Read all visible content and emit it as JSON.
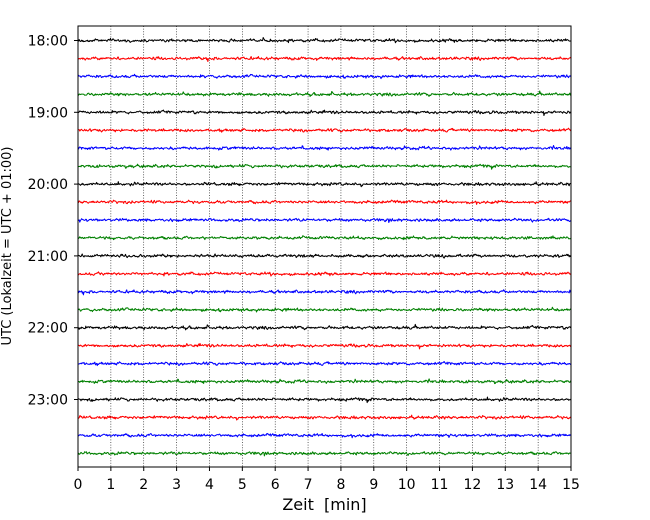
{
  "chart_data": {
    "type": "line",
    "title": "",
    "xlabel": "Zeit  [min]",
    "ylabel": "UTC (Lokalzeit = UTC + 01:00)",
    "xlim": [
      0,
      15
    ],
    "x_ticks": [
      "0",
      "1",
      "2",
      "3",
      "4",
      "5",
      "6",
      "7",
      "8",
      "9",
      "10",
      "11",
      "12",
      "13",
      "14",
      "15"
    ],
    "y_ticks": [
      "18:00",
      "19:00",
      "20:00",
      "21:00",
      "22:00",
      "23:00"
    ],
    "vertical_grid": "dotted",
    "line_colors": [
      "#000000",
      "#ff0000",
      "#0000ff",
      "#008000"
    ],
    "trace_start_times": [
      "18:00",
      "18:15",
      "18:30",
      "18:45",
      "19:00",
      "19:15",
      "19:30",
      "19:45",
      "20:00",
      "20:15",
      "20:30",
      "20:45",
      "21:00",
      "21:15",
      "21:30",
      "21:45",
      "22:00",
      "22:15",
      "22:30",
      "22:45",
      "23:00",
      "23:15",
      "23:30",
      "23:45"
    ],
    "trace_duration_min": 15
  }
}
